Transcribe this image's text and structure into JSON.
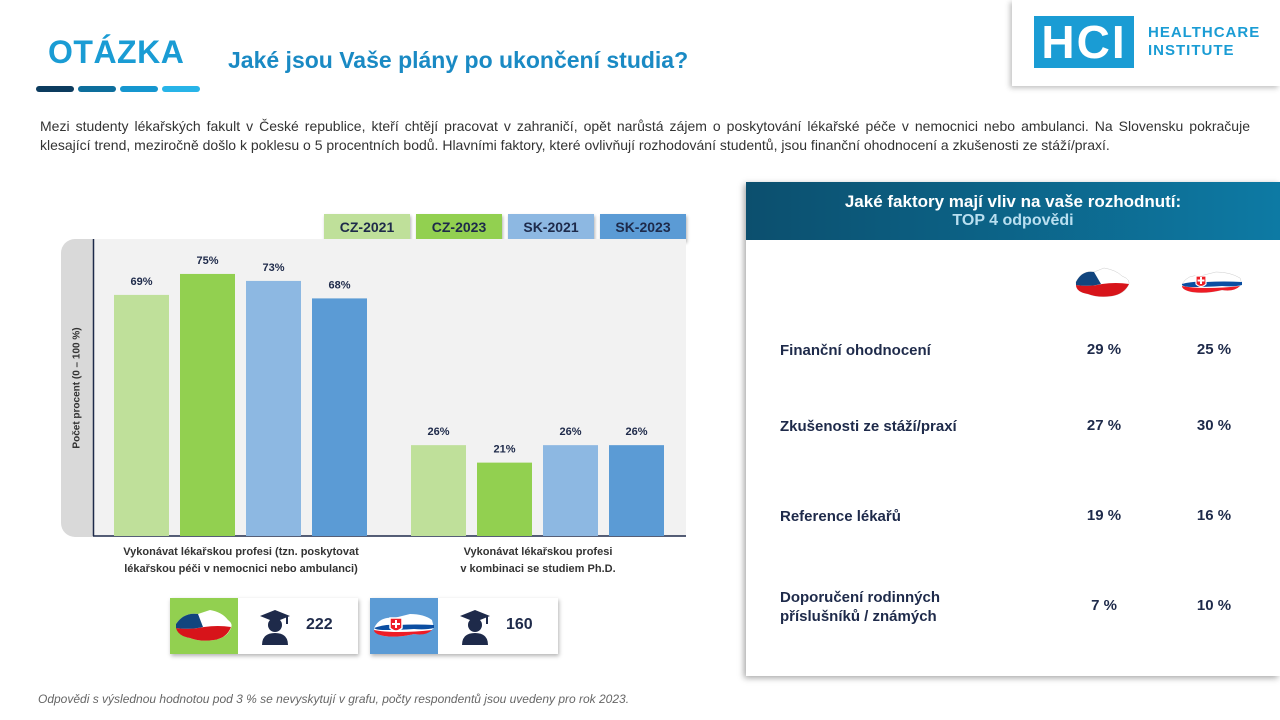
{
  "header": {
    "label": "OTÁZKA",
    "question": "Jaké jsou Vaše plány po ukončení studia?",
    "dash_colors": [
      "#0c3b5e",
      "#0d6e9c",
      "#1596cf",
      "#28b4e8"
    ]
  },
  "logo": {
    "mark": "HCI",
    "line1": "HEALTHCARE",
    "line2": "INSTITUTE",
    "color": "#1a9cd4"
  },
  "intro": "Mezi studenty lékařských fakult v České republice, kteří chtějí pracovat v zahraničí, opět narůstá zájem o poskytování lékařské péče v nemocnici nebo ambulanci. Na Slovensku pokračuje klesající trend, meziročně došlo k poklesu o 5 procentních bodů. Hlavními faktory, které ovlivňují rozhodování studentů, jsou finanční ohodnocení a zkušenosti ze stáží/praxí.",
  "chart_data": {
    "type": "bar",
    "categories": [
      "Vykonávat lékařskou profesi (tzn. poskytovat lékařskou péči v nemocnici nebo ambulanci)",
      "Vykonávat lékařskou profesi v kombinaci se studiem Ph.D."
    ],
    "category_lines": [
      [
        "Vykonávat lékařskou profesi (tzn. poskytovat",
        "lékařskou péči v nemocnici nebo ambulanci)"
      ],
      [
        "Vykonávat lékařskou profesi",
        "v kombinaci se studiem Ph.D."
      ]
    ],
    "series": [
      {
        "name": "CZ-2021",
        "values": [
          69,
          26
        ],
        "labels": [
          "69%",
          "26%"
        ],
        "color": "#bfe09a"
      },
      {
        "name": "CZ-2023",
        "values": [
          75,
          21
        ],
        "labels": [
          "75%",
          "21%"
        ],
        "color": "#92d050"
      },
      {
        "name": "SK-2021",
        "values": [
          73,
          26
        ],
        "labels": [
          "73%",
          "26%"
        ],
        "color": "#8db8e2"
      },
      {
        "name": "SK-2023",
        "values": [
          68,
          26
        ],
        "labels": [
          "68%",
          "26%"
        ],
        "color": "#5b9bd5"
      }
    ],
    "ylabel": "Počet procent (0 – 100 %)",
    "ylim": [
      0,
      85
    ],
    "legend_position": "top-right",
    "grid": false
  },
  "respondents": [
    {
      "country": "CZ",
      "count": "222",
      "bg": "#92d050"
    },
    {
      "country": "SK",
      "count": "160",
      "bg": "#5b9bd5"
    }
  ],
  "factors": {
    "title": "Jaké faktory mají vliv na vaše rozhodnutí:",
    "subtitle": "TOP 4 odpovědi",
    "rows": [
      {
        "lines": [
          "Finanční ohodnocení"
        ],
        "cz": "29 %",
        "sk": "25 %"
      },
      {
        "lines": [
          "Zkušenosti ze stáží/praxí"
        ],
        "cz": "27 %",
        "sk": "30 %"
      },
      {
        "lines": [
          "Reference lékařů"
        ],
        "cz": "19 %",
        "sk": "16 %"
      },
      {
        "lines": [
          "Doporučení rodinných",
          "příslušníků / známých"
        ],
        "cz": "7 %",
        "sk": "10 %"
      }
    ]
  },
  "footnote": "Odpovědi s výslednou hodnotou pod 3 % se nevyskytují v grafu, počty respondentů jsou uvedeny pro rok 2023."
}
